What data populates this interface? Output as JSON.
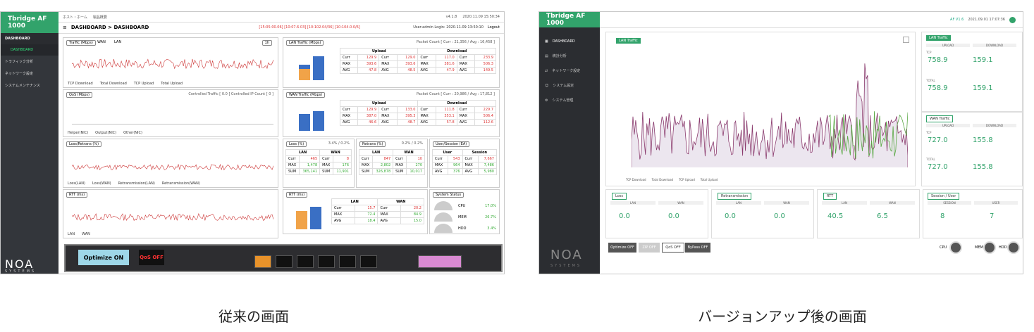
{
  "captions": {
    "old": "従来の画面",
    "new": "バージョンアップ後の画面"
  },
  "old": {
    "logo": "Tbridge AF 1000",
    "nav": [
      {
        "label": "DASHBOARD"
      },
      {
        "label": "DASHBOARD"
      },
      {
        "label": "トラフィック分析"
      },
      {
        "label": "ネットワーク設定"
      },
      {
        "label": "システムメンテナンス"
      }
    ],
    "brand": "NOA",
    "brand_sub": "SYSTEMS",
    "topbar": {
      "home": "ホスト・ホーム",
      "crumb": "製品概要",
      "version": "v4.1.8",
      "datetime": "2020.11.09  15:50:34"
    },
    "header": {
      "title": "DASHBOARD > DASHBOARD",
      "alert": "[15:05:00.06] [10:07.6.03] [10:102.04/36] [10:104.0.0/6]",
      "user": "User:admin  Login: 2020.11.09  13:50:10",
      "logout": "Logout"
    },
    "traffic": {
      "title": "Traffic (Mbps)",
      "opt_wan": "WAN",
      "opt_lan": "LAN",
      "zoom": "1h",
      "legend": [
        "TCP Download",
        "Total Download",
        "TCP Upload",
        "Total Upload"
      ]
    },
    "lan_traffic": {
      "title": "LAN Traffic (Mbps)",
      "packet": "Packet Count [ Curr : 21,356 / Avg : 16,458 ]",
      "upload": "Upload",
      "download": "Download",
      "rows": [
        {
          "label": "Curr",
          "v1": "129.9",
          "v2": "129.0",
          "v3": "117.0",
          "v4": "233.9"
        },
        {
          "label": "MAX",
          "v1": "393.6",
          "v2": "393.6",
          "v3": "381.6",
          "v4": "506.3"
        },
        {
          "label": "AVG",
          "v1": "47.8",
          "v2": "48.5",
          "v3": "47.9",
          "v4": "149.5"
        }
      ]
    },
    "qos": {
      "title": "QoS (Mbps)",
      "info": "Controlled Traffic [ 0.0 ]   Controlled IP Count [ 0 ]",
      "legend": [
        "Helper(NIC)",
        "Output(NIC)",
        "Other(NIC)"
      ]
    },
    "wan_traffic": {
      "title": "WAN Traffic (Mbps)",
      "packet": "Packet Count [ Curr : 20,986 / Avg : 17,812 ]",
      "upload": "Upload",
      "download": "Download",
      "rows": [
        {
          "label": "Curr",
          "v1": "129.9",
          "v2": "133.0",
          "v3": "111.8",
          "v4": "229.7"
        },
        {
          "label": "MAX",
          "v1": "387.0",
          "v2": "395.3",
          "v3": "353.1",
          "v4": "506.4"
        },
        {
          "label": "AVG",
          "v1": "46.6",
          "v2": "48.7",
          "v3": "57.8",
          "v4": "112.6"
        }
      ]
    },
    "loss_retrans": {
      "title": "Loss/Retrans (%)",
      "legend": [
        "Loss(LAN)",
        "Loss(WAN)",
        "Retransmission(LAN)",
        "Retransmission(WAN)"
      ]
    },
    "loss": {
      "title": "Loss (%)",
      "ratio": "3.4% / 0.2%",
      "lan": "LAN",
      "wan": "WAN",
      "rows": [
        {
          "label": "Curr",
          "lan": "465",
          "wan": "8"
        },
        {
          "label": "MAX",
          "lan": "1,478",
          "wan": "176"
        },
        {
          "label": "SUM",
          "lan": "365,141",
          "wan": "11,901"
        }
      ]
    },
    "retrans": {
      "title": "Retrans (%)",
      "ratio": "0.2% / 0.2%",
      "lan": "LAN",
      "wan": "WAN",
      "rows": [
        {
          "label": "Curr",
          "lan": "847",
          "wan": "10"
        },
        {
          "label": "MAX",
          "lan": "2,802",
          "wan": "270"
        },
        {
          "label": "SUM",
          "lan": "326,878",
          "wan": "10,017"
        }
      ]
    },
    "user_session": {
      "title": "User/Session (EA)",
      "user": "User",
      "session": "Session",
      "rows": [
        {
          "label": "Curr",
          "user": "543",
          "session": "7,667"
        },
        {
          "label": "MAX",
          "user": "964",
          "session": "7,486"
        },
        {
          "label": "AVG",
          "user": "376",
          "session": "5,980"
        }
      ]
    },
    "rtt": {
      "title": "RTT (ms)",
      "legend": [
        "LAN",
        "WAN"
      ]
    },
    "rtt_tbl": {
      "title": "RTT (ms)",
      "lan": "LAN",
      "wan": "WAN",
      "rows": [
        {
          "label": "Curr",
          "lan": "15.7",
          "wan": "20.2"
        },
        {
          "label": "MAX",
          "lan": "72.4",
          "wan": "84.9"
        },
        {
          "label": "AVG",
          "lan": "18.4",
          "wan": "15.0"
        }
      ]
    },
    "system": {
      "title": "System Status",
      "cpu_label": "CPU",
      "cpu": "17.0%",
      "mem_label": "MEM",
      "mem": "26.7%",
      "hdd_label": "HDD",
      "hdd": "3.4%"
    },
    "device": {
      "optimize": "Optimize ON",
      "qos": "QoS OFF"
    }
  },
  "new": {
    "logo": "Tbridge AF 1000",
    "nav": [
      {
        "label": "DASHBOARD"
      },
      {
        "label": "統計分析"
      },
      {
        "label": "ネットワーク設定"
      },
      {
        "label": "システム設定"
      },
      {
        "label": "システム管理"
      }
    ],
    "brand": "NOA",
    "brand_sub": "SYSTEMS",
    "topbar": {
      "version": "AF V1.6",
      "datetime": "2021.09.01  17:07:36"
    },
    "lan_chart": {
      "title": "LAN Traffic",
      "legend": [
        "TCP Download",
        "Total Download",
        "TCP Upload",
        "Total Upload"
      ]
    },
    "lan_traffic": {
      "title": "LAN Traffic",
      "upload": "UPLOAD",
      "download": "DOWNLOAD",
      "tcp": "TCP",
      "total": "TOTAL",
      "tcp_up": "758.9",
      "tcp_down": "159.1",
      "total_up": "758.9",
      "total_down": "159.1"
    },
    "wan_traffic": {
      "title": "WAN Traffic",
      "upload": "UPLOAD",
      "download": "DOWNLOAD",
      "tcp": "TCP",
      "total": "TOTAL",
      "tcp_up": "727.0",
      "tcp_down": "155.8",
      "total_up": "727.0",
      "total_down": "155.8"
    },
    "loss": {
      "title": "Loss",
      "lan": "LAN",
      "wan": "WAN",
      "lan_val": "0.0",
      "wan_val": "0.0"
    },
    "retrans": {
      "title": "Retransmission",
      "lan": "LAN",
      "wan": "WAN",
      "lan_val": "0.0",
      "wan_val": "0.0"
    },
    "rtt": {
      "title": "RTT",
      "lan": "LAN",
      "wan": "WAN",
      "lan_val": "40.5",
      "wan_val": "6.5"
    },
    "session": {
      "title": "Session / User",
      "session": "SESSION",
      "user": "USER",
      "session_val": "8",
      "user_val": "7"
    },
    "buttons": {
      "optimize": "Optimize OFF",
      "zip": "ZIP OFF",
      "qos": "QoS OFF",
      "bypass": "ByPass OFF"
    },
    "status": {
      "cpu": "CPU",
      "mem": "MEM",
      "hdd": "HDD"
    }
  }
}
